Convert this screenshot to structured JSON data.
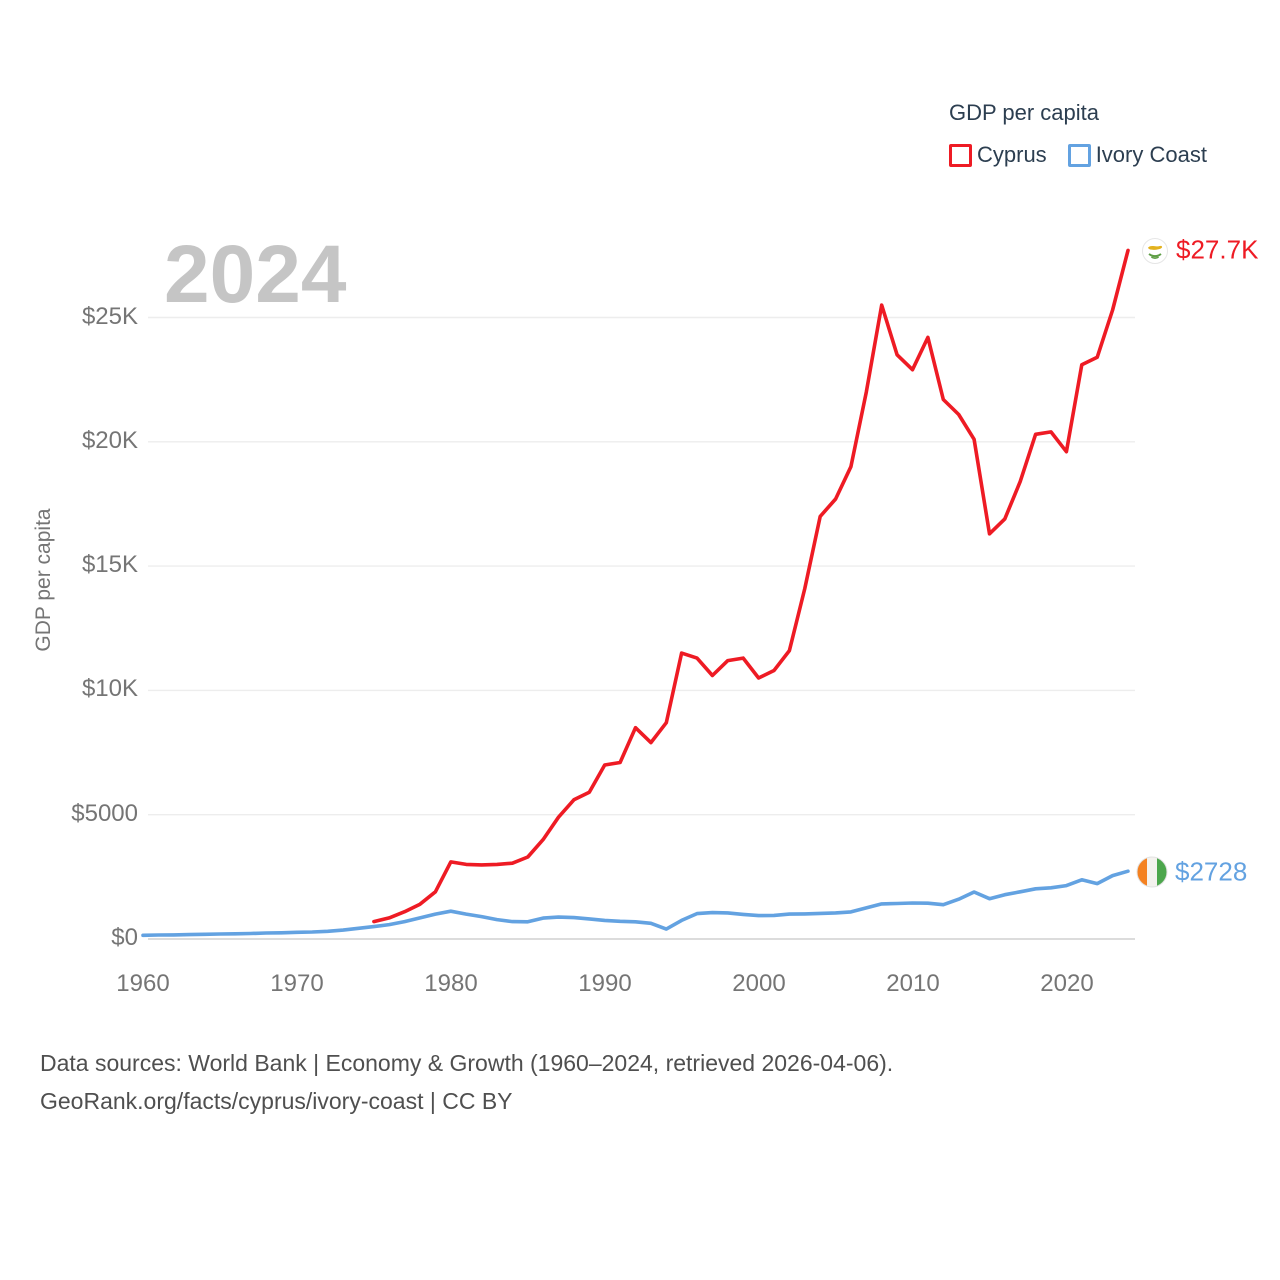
{
  "watermark": "2024",
  "legend": {
    "title": "GDP per capita",
    "series": [
      {
        "label": "Cyprus",
        "color": "#ee1b24"
      },
      {
        "label": "Ivory Coast",
        "color": "#63a2e1"
      }
    ]
  },
  "y_axis": {
    "title": "GDP per capita"
  },
  "end_labels": {
    "cyprus": "$27.7K",
    "ivory_coast": "$2728",
    "cyprus_flag": "cyprus-flag",
    "ivory_coast_flag": "ivory-coast-flag"
  },
  "footer": {
    "line1": "Data sources: World Bank | Economy & Growth (1960–2024, retrieved 2026-04-06).",
    "line2": "GeoRank.org/facts/cyprus/ivory-coast | CC BY"
  },
  "chart_data": {
    "type": "line",
    "title": "GDP per capita",
    "xlabel": "",
    "ylabel": "GDP per capita",
    "xlim": [
      1960,
      2024
    ],
    "ylim": [
      0,
      27700
    ],
    "grid": true,
    "legend_position": "top-right",
    "x_ticks": [
      1960,
      1970,
      1980,
      1990,
      2000,
      2010,
      2020
    ],
    "y_ticks": [
      {
        "value": 0,
        "label": "$0"
      },
      {
        "value": 5000,
        "label": "$5000"
      },
      {
        "value": 10000,
        "label": "$10K"
      },
      {
        "value": 15000,
        "label": "$15K"
      },
      {
        "value": 20000,
        "label": "$20K"
      },
      {
        "value": 25000,
        "label": "$25K"
      }
    ],
    "series": [
      {
        "name": "Cyprus",
        "color": "#ee1b24",
        "start_year": 1975,
        "end_label": "$27.7K",
        "values": [
          700,
          850,
          1100,
          1400,
          1900,
          3100,
          3000,
          2980,
          3000,
          3050,
          3300,
          4000,
          4900,
          5600,
          5900,
          7000,
          7100,
          8500,
          7900,
          8700,
          11500,
          11300,
          10600,
          11200,
          11300,
          10500,
          10800,
          11600,
          14100,
          17000,
          17700,
          19000,
          22000,
          25500,
          23500,
          22900,
          24200,
          21700,
          21100,
          20100,
          16300,
          16900,
          18400,
          20300,
          20400,
          19600,
          23100,
          23400,
          25300,
          27700
        ]
      },
      {
        "name": "Ivory Coast",
        "color": "#63a2e1",
        "start_year": 1960,
        "end_label": "$2728",
        "values": [
          150,
          160,
          165,
          175,
          190,
          200,
          210,
          220,
          240,
          250,
          270,
          280,
          310,
          360,
          430,
          500,
          580,
          700,
          850,
          1000,
          1120,
          1000,
          900,
          780,
          700,
          690,
          840,
          880,
          860,
          810,
          750,
          710,
          690,
          630,
          400,
          750,
          1020,
          1060,
          1050,
          990,
          940,
          950,
          1000,
          1010,
          1030,
          1050,
          1090,
          1250,
          1410,
          1430,
          1450,
          1440,
          1380,
          1600,
          1890,
          1620,
          1780,
          1900,
          2020,
          2060,
          2150,
          2380,
          2230,
          2550,
          2728
        ]
      }
    ]
  }
}
